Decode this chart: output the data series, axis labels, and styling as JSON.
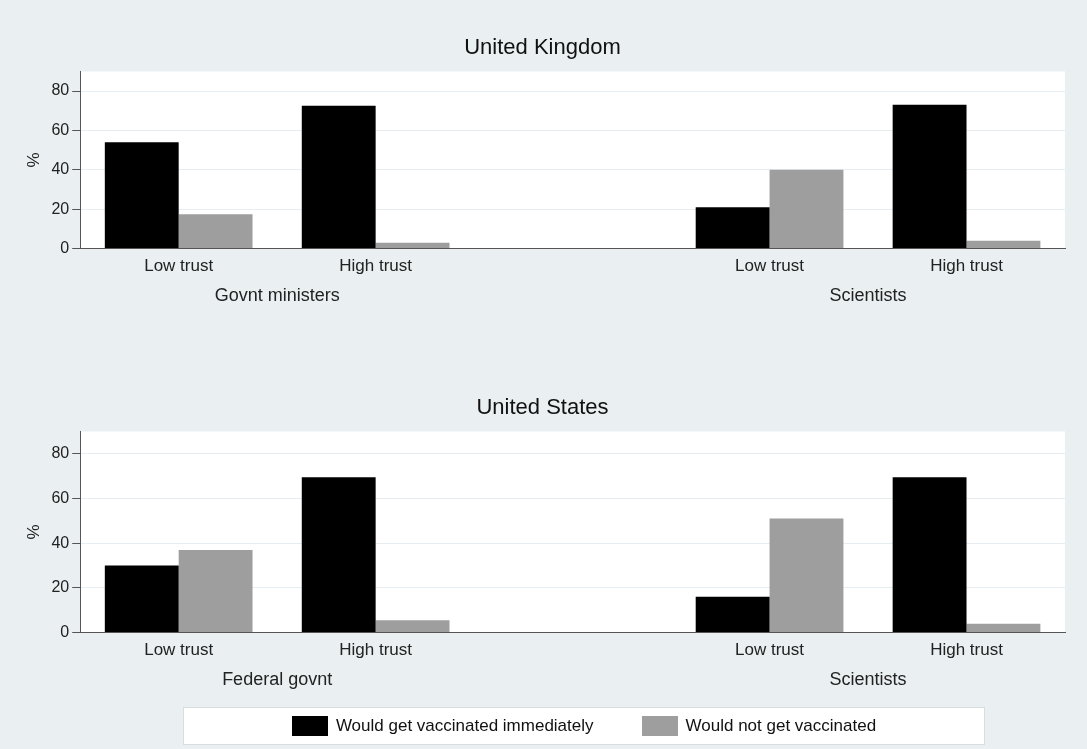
{
  "chart_data": [
    {
      "type": "bar",
      "title": "United Kingdom",
      "ylabel": "%",
      "categories": [
        "Low trust",
        "High trust",
        null,
        "Low trust",
        "High trust"
      ],
      "series": [
        {
          "color": "#000000",
          "values": [
            54,
            72.5,
            null,
            21,
            73
          ]
        },
        {
          "color": "#9e9e9e",
          "values": [
            17.5,
            3,
            null,
            40,
            4
          ]
        }
      ],
      "ylim": [
        0,
        90
      ],
      "yticks": [
        0,
        20,
        40,
        60,
        80
      ],
      "grid": "y",
      "legend": false,
      "annotations": [
        "Govnt ministers",
        "Scientists"
      ]
    },
    {
      "type": "bar",
      "title": "United States",
      "ylabel": "%",
      "categories": [
        "Low trust",
        "High trust",
        null,
        "Low trust",
        "High trust"
      ],
      "series": [
        {
          "name": "Would get vaccinated immediately",
          "color": "#000000",
          "values": [
            30,
            69.5,
            null,
            16,
            69.5
          ]
        },
        {
          "name": "Would not get vaccinated",
          "color": "#9e9e9e",
          "values": [
            37,
            5.5,
            null,
            51,
            4
          ]
        }
      ],
      "ylim": [
        0,
        90
      ],
      "yticks": [
        0,
        20,
        40,
        60,
        80
      ],
      "grid": "y",
      "legend": "bottom",
      "annotations": [
        "Federal govnt",
        "Scientists"
      ]
    }
  ]
}
